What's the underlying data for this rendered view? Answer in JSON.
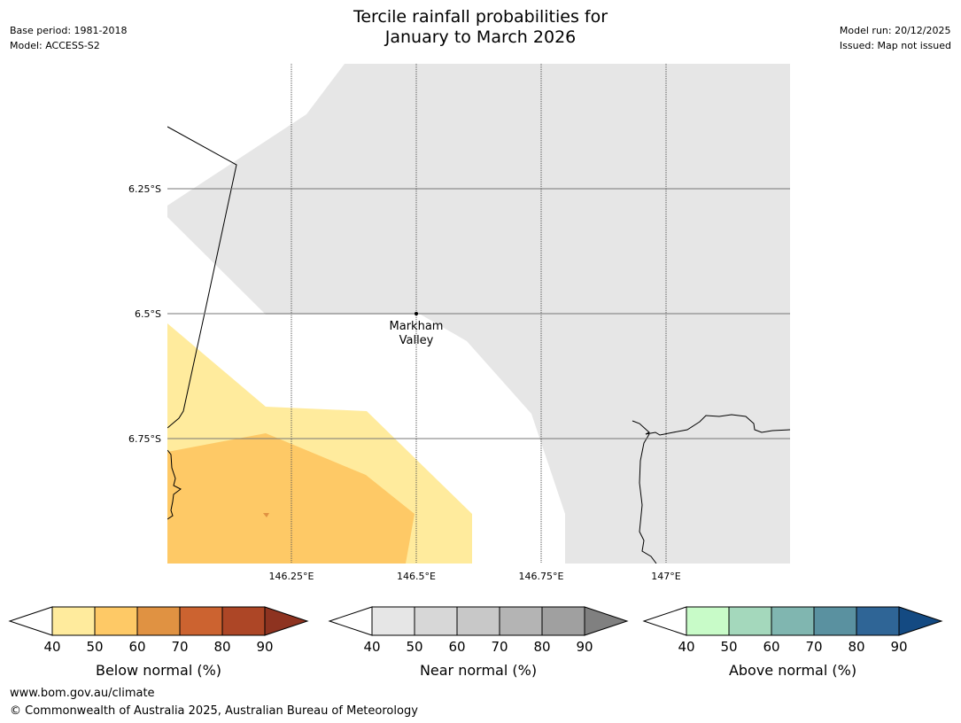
{
  "title": {
    "line1": "Tercile rainfall probabilities for",
    "line2": "January to March 2026"
  },
  "meta": {
    "base_period": "Base period: 1981-2018",
    "model": "Model: ACCESS-S2",
    "model_run": "Model run: 20/12/2025",
    "issued": "Issued: Map not issued"
  },
  "map": {
    "latitude_labels": [
      "6.25°S",
      "6.5°S",
      "6.75°S"
    ],
    "longitude_labels": [
      "146.25°E",
      "146.5°E",
      "146.75°E",
      "147°E"
    ],
    "place": {
      "line1": "Markham",
      "line2": "Valley"
    }
  },
  "colorbars": {
    "ticks": [
      "40",
      "50",
      "60",
      "70",
      "80",
      "90"
    ],
    "below": {
      "label": "Below normal (%)",
      "colors": [
        "#ffeb9d",
        "#fec966",
        "#e09242",
        "#cc6330",
        "#ad4626",
        "#8e3320"
      ]
    },
    "near": {
      "label": "Near normal (%)",
      "colors": [
        "#e6e6e6",
        "#d7d7d7",
        "#c8c8c8",
        "#b4b4b4",
        "#a0a0a0",
        "#808080"
      ]
    },
    "above": {
      "label": "Above normal (%)",
      "colors": [
        "#c8fbc8",
        "#a4d8bc",
        "#80b6b0",
        "#5a91a0",
        "#2f6596",
        "#144a82"
      ]
    }
  },
  "footer": {
    "url": "www.bom.gov.au/climate",
    "copyright": "© Commonwealth of Australia 2025, Australian Bureau of Meteorology"
  }
}
